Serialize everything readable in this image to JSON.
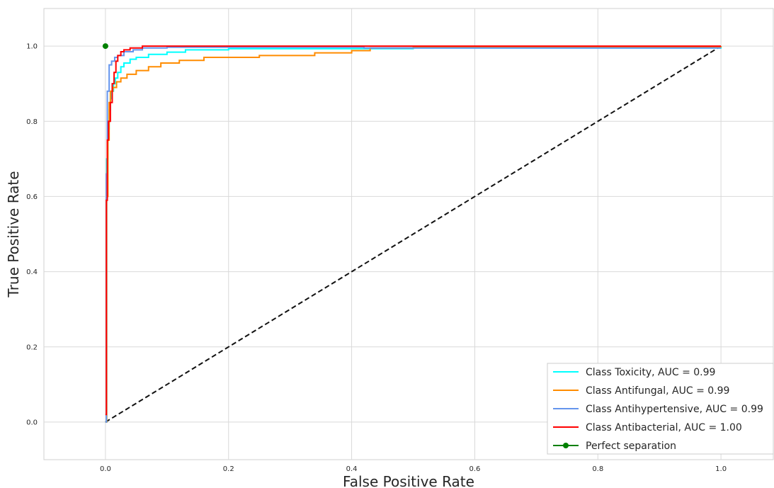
{
  "chart_data": {
    "type": "line",
    "title": "",
    "xlabel": "False Positive Rate",
    "ylabel": "True Positive Rate",
    "xlim": [
      -0.1,
      1.085
    ],
    "ylim": [
      -0.1,
      1.1
    ],
    "xticks": [
      0.0,
      0.2,
      0.4,
      0.6,
      0.8,
      1.0
    ],
    "yticks": [
      0.0,
      0.2,
      0.4,
      0.6,
      0.8,
      1.0
    ],
    "xtick_labels": [
      "0.0",
      "0.2",
      "0.4",
      "0.6",
      "0.8",
      "1.0"
    ],
    "ytick_labels": [
      "0.0",
      "0.2",
      "0.4",
      "0.6",
      "0.8",
      "1.0"
    ],
    "grid": true,
    "legend_position": "lower-right",
    "series": [
      {
        "name": "Class Toxicity, AUC = 0.99",
        "color": "#00ffff",
        "style": "step",
        "x": [
          0,
          0.002,
          0.004,
          0.006,
          0.008,
          0.01,
          0.013,
          0.016,
          0.02,
          0.025,
          0.03,
          0.04,
          0.05,
          0.07,
          0.1,
          0.13,
          0.2,
          0.5,
          1.0
        ],
        "y": [
          0,
          0.7,
          0.78,
          0.83,
          0.86,
          0.88,
          0.9,
          0.915,
          0.93,
          0.945,
          0.955,
          0.965,
          0.97,
          0.978,
          0.984,
          0.99,
          0.993,
          0.995,
          1.0
        ]
      },
      {
        "name": "Class Antifungal, AUC = 0.99",
        "color": "#ff8c00",
        "style": "step",
        "x": [
          0,
          0.002,
          0.004,
          0.006,
          0.008,
          0.012,
          0.018,
          0.025,
          0.035,
          0.05,
          0.07,
          0.09,
          0.12,
          0.16,
          0.25,
          0.34,
          0.4,
          0.43,
          0.5,
          1.0
        ],
        "y": [
          0,
          0.6,
          0.75,
          0.85,
          0.88,
          0.89,
          0.905,
          0.915,
          0.925,
          0.935,
          0.945,
          0.955,
          0.962,
          0.97,
          0.975,
          0.982,
          0.988,
          0.995,
          0.998,
          1.0
        ]
      },
      {
        "name": "Class Antihypertensive, AUC = 0.99",
        "color": "#6495ed",
        "style": "step",
        "x": [
          0,
          0.0015,
          0.003,
          0.006,
          0.01,
          0.015,
          0.02,
          0.03,
          0.045,
          0.06,
          0.1,
          0.4,
          0.42,
          1.0
        ],
        "y": [
          0,
          0.66,
          0.88,
          0.95,
          0.96,
          0.97,
          0.975,
          0.985,
          0.99,
          0.995,
          0.997,
          0.997,
          0.995,
          0.995
        ]
      },
      {
        "name": "Class Antibacterial, AUC = 1.00",
        "color": "#ff0000",
        "style": "step",
        "x": [
          0,
          0.0015,
          0.003,
          0.005,
          0.008,
          0.011,
          0.014,
          0.017,
          0.02,
          0.025,
          0.03,
          0.04,
          0.06,
          1.0
        ],
        "y": [
          0.02,
          0.59,
          0.75,
          0.8,
          0.85,
          0.9,
          0.93,
          0.96,
          0.975,
          0.985,
          0.99,
          0.995,
          1.0,
          1.0
        ]
      },
      {
        "name": "Perfect separation",
        "color": "#008000",
        "style": "marker",
        "x": [
          0
        ],
        "y": [
          1
        ]
      }
    ],
    "reference_line": {
      "x": [
        0,
        1
      ],
      "y": [
        0,
        1
      ],
      "color": "#111111",
      "dashed": true
    }
  }
}
